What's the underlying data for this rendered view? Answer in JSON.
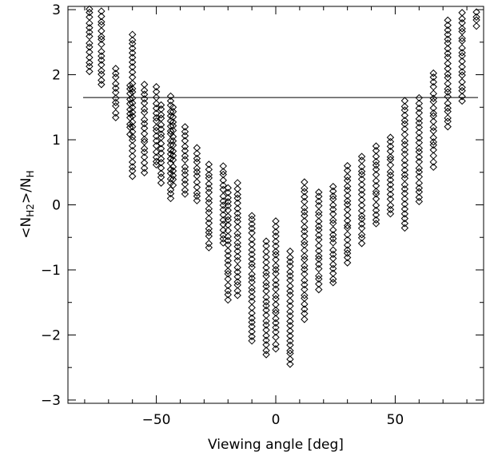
{
  "chart_data": {
    "type": "scatter",
    "xlabel": "Viewing angle [deg]",
    "ylabel_parts": {
      "lead": "<N",
      "sub1": "H2",
      "mid": ">/N",
      "sub2": "H"
    },
    "xlim": [
      -87,
      87
    ],
    "ylim": [
      -3.05,
      3.05
    ],
    "xticks": [
      -50,
      0,
      50
    ],
    "yticks": [
      -3,
      -2,
      -1,
      0,
      1,
      2,
      3
    ],
    "xtick_labels": [
      "−50",
      "0",
      "50"
    ],
    "ytick_labels": [
      "−3",
      "−2",
      "−1",
      "0",
      "1",
      "2",
      "3"
    ],
    "marker": "diamond",
    "grid": false,
    "reference_line": {
      "y": 1.65
    },
    "columns": [
      {
        "x": -78,
        "y_min": 2.05,
        "y_max": 3.05
      },
      {
        "x": -73,
        "y_min": 1.85,
        "y_max": 3.05
      },
      {
        "x": -67,
        "y_min": 1.35,
        "y_max": 2.1
      },
      {
        "x": -61,
        "y_min": 1.1,
        "y_max": 1.9
      },
      {
        "x": -60,
        "y_min": 0.45,
        "y_max": 2.65
      },
      {
        "x": -55,
        "y_min": 0.5,
        "y_max": 1.85
      },
      {
        "x": -50,
        "y_min": 0.6,
        "y_max": 1.85
      },
      {
        "x": -48,
        "y_min": 0.35,
        "y_max": 1.55
      },
      {
        "x": -44,
        "y_min": 0.1,
        "y_max": 1.7
      },
      {
        "x": -43,
        "y_min": 0.3,
        "y_max": 1.5
      },
      {
        "x": -38,
        "y_min": 0.15,
        "y_max": 1.25
      },
      {
        "x": -33,
        "y_min": 0.05,
        "y_max": 0.9
      },
      {
        "x": -28,
        "y_min": -0.65,
        "y_max": 0.65
      },
      {
        "x": -22,
        "y_min": -0.6,
        "y_max": 0.65
      },
      {
        "x": -20,
        "y_min": -1.45,
        "y_max": 0.3
      },
      {
        "x": -16,
        "y_min": -1.4,
        "y_max": 0.35
      },
      {
        "x": -10,
        "y_min": -2.1,
        "y_max": -0.15
      },
      {
        "x": -4,
        "y_min": -2.3,
        "y_max": -0.55
      },
      {
        "x": 0,
        "y_min": -2.2,
        "y_max": -0.25
      },
      {
        "x": 6,
        "y_min": -2.45,
        "y_max": -0.7
      },
      {
        "x": 12,
        "y_min": -1.75,
        "y_max": 0.35
      },
      {
        "x": 18,
        "y_min": -1.3,
        "y_max": 0.2
      },
      {
        "x": 24,
        "y_min": -1.2,
        "y_max": 0.35
      },
      {
        "x": 30,
        "y_min": -0.9,
        "y_max": 0.6
      },
      {
        "x": 36,
        "y_min": -0.6,
        "y_max": 0.8
      },
      {
        "x": 42,
        "y_min": -0.3,
        "y_max": 0.95
      },
      {
        "x": 48,
        "y_min": -0.15,
        "y_max": 1.05
      },
      {
        "x": 54,
        "y_min": -0.35,
        "y_max": 1.6
      },
      {
        "x": 60,
        "y_min": 0.05,
        "y_max": 1.65
      },
      {
        "x": 66,
        "y_min": 0.6,
        "y_max": 2.05
      },
      {
        "x": 72,
        "y_min": 1.2,
        "y_max": 2.9
      },
      {
        "x": 78,
        "y_min": 1.6,
        "y_max": 3.05
      },
      {
        "x": 84,
        "y_min": 2.75,
        "y_max": 3.05
      }
    ]
  }
}
